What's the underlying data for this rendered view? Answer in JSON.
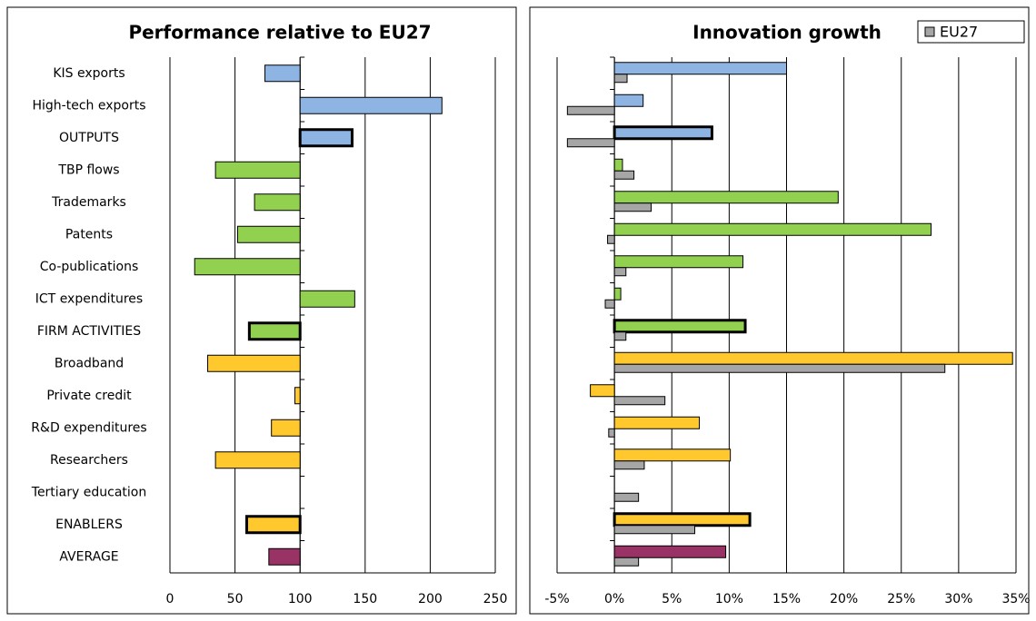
{
  "chart_data": [
    {
      "type": "bar",
      "orientation": "horizontal",
      "title": "Performance relative to EU27",
      "categories": [
        "KIS exports",
        "High-tech exports",
        "OUTPUTS",
        "TBP flows",
        "Trademarks",
        "Patents",
        "Co-publications",
        "ICT expenditures",
        "FIRM ACTIVITIES",
        "Broadband",
        "Private credit",
        "R&D expenditures",
        "Researchers",
        "Tertiary education",
        "ENABLERS",
        "AVERAGE"
      ],
      "values": [
        73,
        209,
        140,
        35,
        65,
        52,
        19,
        142,
        61,
        29,
        96,
        78,
        35,
        null,
        59,
        76
      ],
      "colors": [
        "#8db4e2",
        "#8db4e2",
        "#8db4e2",
        "#92d050",
        "#92d050",
        "#92d050",
        "#92d050",
        "#92d050",
        "#92d050",
        "#ffc82c",
        "#ffc82c",
        "#ffc82c",
        "#ffc82c",
        "#ffc82c",
        "#ffc82c",
        "#993366"
      ],
      "highlight_indices": [
        2,
        8,
        14
      ],
      "base": 100,
      "xlim": [
        0,
        250
      ],
      "xticks": [
        0,
        50,
        100,
        150,
        200,
        250
      ],
      "grid": true
    },
    {
      "type": "grouped-bar",
      "orientation": "horizontal",
      "title": "Innovation growth",
      "series": [
        {
          "colors": [
            "#8db4e2",
            "#8db4e2",
            "#8db4e2",
            "#92d050",
            "#92d050",
            "#92d050",
            "#92d050",
            "#92d050",
            "#92d050",
            "#ffc82c",
            "#ffc82c",
            "#ffc82c",
            "#ffc82c",
            "#ffc82c",
            "#ffc82c",
            "#993366"
          ],
          "values": [
            15.0,
            2.5,
            8.5,
            0.7,
            19.5,
            27.6,
            11.2,
            0.55,
            11.4,
            34.7,
            -2.1,
            7.4,
            10.1,
            null,
            11.8,
            9.7
          ]
        },
        {
          "name": "EU27",
          "color": "#a6a6a6",
          "values": [
            1.1,
            -4.1,
            -4.1,
            1.7,
            3.2,
            -0.6,
            1.0,
            -0.8,
            1.0,
            28.8,
            4.4,
            -0.5,
            2.6,
            2.1,
            7.0,
            2.1
          ]
        }
      ],
      "highlight_indices": [
        2,
        8,
        14
      ],
      "xlim": [
        -5,
        35
      ],
      "xticks": [
        {
          "value": -5,
          "label": "-5%"
        },
        {
          "value": 0,
          "label": "0%"
        },
        {
          "value": 5,
          "label": "5%"
        },
        {
          "value": 10,
          "label": "10%"
        },
        {
          "value": 15,
          "label": "15%"
        },
        {
          "value": 20,
          "label": "20%"
        },
        {
          "value": 25,
          "label": "25%"
        },
        {
          "value": 30,
          "label": "30%"
        },
        {
          "value": 35,
          "label": "35%"
        }
      ],
      "grid": true,
      "legend": "top-right"
    }
  ]
}
